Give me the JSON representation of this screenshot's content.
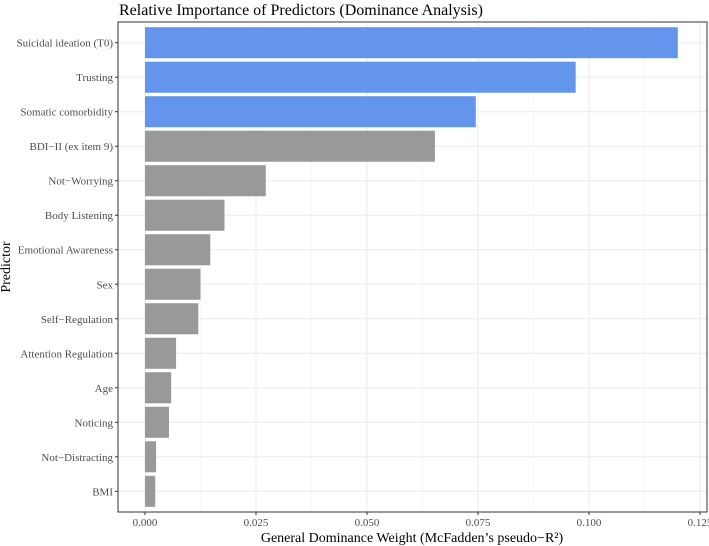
{
  "chart_data": {
    "type": "bar",
    "orientation": "horizontal",
    "title": "Relative Importance of Predictors (Dominance Analysis)",
    "xlabel": "General Dominance Weight (McFadden’s pseudo−R²)",
    "ylabel": "Predictor",
    "xlim": [
      0,
      0.125
    ],
    "xticks": [
      "0.000",
      "0.025",
      "0.050",
      "0.075",
      "0.100",
      "0.125"
    ],
    "grid": true,
    "categories": [
      "Suicidal ideation (T0)",
      "Trusting",
      "Somatic comorbidity",
      "BDI−II (ex item 9)",
      "Not−Worrying",
      "Body Listening",
      "Emotional Awareness",
      "Sex",
      "Self−Regulation",
      "Attention Regulation",
      "Age",
      "Noticing",
      "Not−Distracting",
      "BMI"
    ],
    "values": [
      0.12,
      0.097,
      0.0745,
      0.0653,
      0.0272,
      0.0179,
      0.0147,
      0.0125,
      0.012,
      0.007,
      0.0059,
      0.0054,
      0.0025,
      0.0023
    ],
    "highlighted": [
      true,
      true,
      true,
      false,
      false,
      false,
      false,
      false,
      false,
      false,
      false,
      false,
      false,
      false
    ],
    "colors": {
      "highlight": "#6495ED",
      "default": "#999999"
    }
  }
}
